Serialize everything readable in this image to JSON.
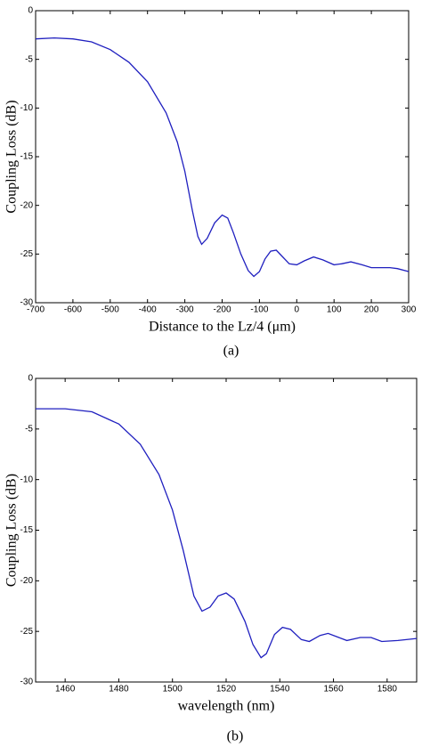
{
  "chart_data": [
    {
      "type": "line",
      "xlabel": "Distance to the Lz/4 (μm)",
      "ylabel": "Coupling Loss (dB)",
      "caption": "(a)",
      "xlim": [
        -700,
        300
      ],
      "xticks": [
        -700,
        -600,
        -500,
        -400,
        -300,
        -200,
        -100,
        0,
        100,
        200,
        300
      ],
      "ylim": [
        -30,
        0
      ],
      "yticks": [
        0,
        -5,
        -10,
        -15,
        -20,
        -25,
        -30
      ],
      "series": [
        {
          "color": "#1f1fbf",
          "x": [
            -700,
            -650,
            -600,
            -550,
            -500,
            -450,
            -400,
            -350,
            -320,
            -300,
            -280,
            -265,
            -255,
            -240,
            -220,
            -200,
            -185,
            -170,
            -150,
            -130,
            -115,
            -100,
            -85,
            -70,
            -55,
            -40,
            -20,
            0,
            20,
            45,
            70,
            100,
            120,
            145,
            175,
            200,
            250,
            270,
            300
          ],
          "values": [
            -2.9,
            -2.8,
            -2.9,
            -3.2,
            -4.0,
            -5.3,
            -7.3,
            -10.5,
            -13.5,
            -16.5,
            -20.5,
            -23.2,
            -24.0,
            -23.4,
            -21.8,
            -21.0,
            -21.3,
            -22.8,
            -25.0,
            -26.7,
            -27.3,
            -26.8,
            -25.5,
            -24.7,
            -24.6,
            -25.2,
            -26.0,
            -26.1,
            -25.7,
            -25.3,
            -25.6,
            -26.1,
            -26.0,
            -25.8,
            -26.1,
            -26.4,
            -26.4,
            -26.5,
            -26.8
          ]
        }
      ]
    },
    {
      "type": "line",
      "xlabel": "wavelength (nm)",
      "ylabel": "Coupling Loss (dB)",
      "caption": "(b)",
      "xlim": [
        1449,
        1591
      ],
      "xticks": [
        1460,
        1480,
        1500,
        1520,
        1540,
        1560,
        1580
      ],
      "ylim": [
        -30,
        0
      ],
      "yticks": [
        0,
        -5,
        -10,
        -15,
        -20,
        -25,
        -30
      ],
      "series": [
        {
          "color": "#1f1fbf",
          "x": [
            1449,
            1460,
            1470,
            1480,
            1488,
            1495,
            1500,
            1504,
            1508,
            1511,
            1514,
            1517,
            1520,
            1523,
            1527,
            1530,
            1533,
            1535,
            1538,
            1541,
            1544,
            1548,
            1551,
            1555,
            1558,
            1562,
            1565,
            1570,
            1574,
            1578,
            1584,
            1591
          ],
          "values": [
            -3.0,
            -3.0,
            -3.3,
            -4.5,
            -6.5,
            -9.5,
            -13.0,
            -17.0,
            -21.5,
            -23.0,
            -22.6,
            -21.5,
            -21.2,
            -21.8,
            -24.0,
            -26.3,
            -27.6,
            -27.2,
            -25.3,
            -24.6,
            -24.8,
            -25.8,
            -26.0,
            -25.4,
            -25.2,
            -25.6,
            -25.9,
            -25.6,
            -25.6,
            -26.0,
            -25.9,
            -25.7
          ]
        }
      ]
    }
  ]
}
